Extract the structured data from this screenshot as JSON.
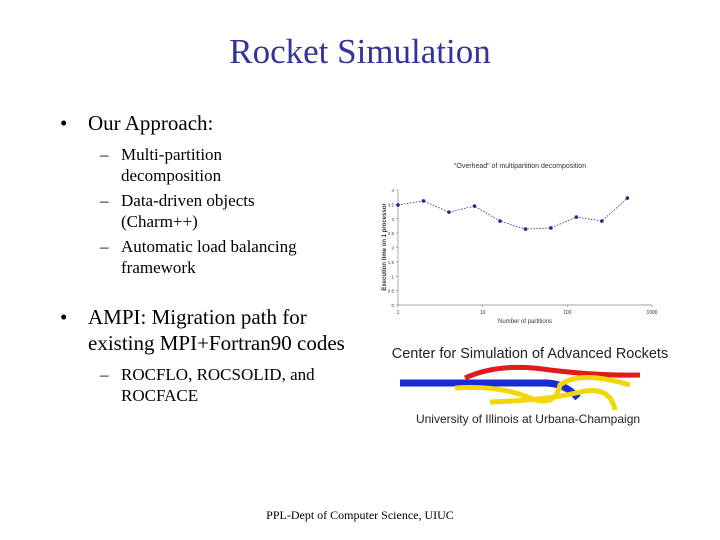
{
  "title": "Rocket Simulation",
  "bullets": [
    {
      "text": "Our Approach:",
      "sub": [
        "Multi-partition decomposition",
        "Data-driven objects (Charm++)",
        "Automatic load balancing framework"
      ]
    },
    {
      "text": "AMPI: Migration path for existing MPI+Fortran90 codes",
      "sub": [
        "ROCFLO, ROCSOLID, and ROCFACE"
      ]
    }
  ],
  "chart_data": {
    "type": "line",
    "title": "\"Overhead\" of multipartition decomposition",
    "x_label": "Number of partitions",
    "y_label": "Execution time on 1 processor",
    "x": [
      1,
      2,
      4,
      8,
      16,
      32,
      64,
      128,
      256,
      512
    ],
    "series": [
      {
        "name": "Execution time",
        "color": "#1f2a8f",
        "values": [
          3.48,
          3.62,
          3.23,
          3.44,
          2.92,
          2.64,
          2.68,
          3.06,
          2.92,
          3.72
        ]
      }
    ],
    "xlim": [
      1,
      1000
    ],
    "xticks": [
      1,
      10,
      100,
      1000
    ],
    "xscale": "log",
    "ylim": [
      0,
      4
    ],
    "yticks": [
      0,
      0.5,
      1,
      1.5,
      2,
      2.5,
      3,
      3.5,
      4
    ],
    "grid": false
  },
  "logo": {
    "top": "Center for Simulation of Advanced Rockets",
    "bottom": "University of Illinois at Urbana-Champaign"
  },
  "footer": "PPL-Dept of Computer Science, UIUC"
}
